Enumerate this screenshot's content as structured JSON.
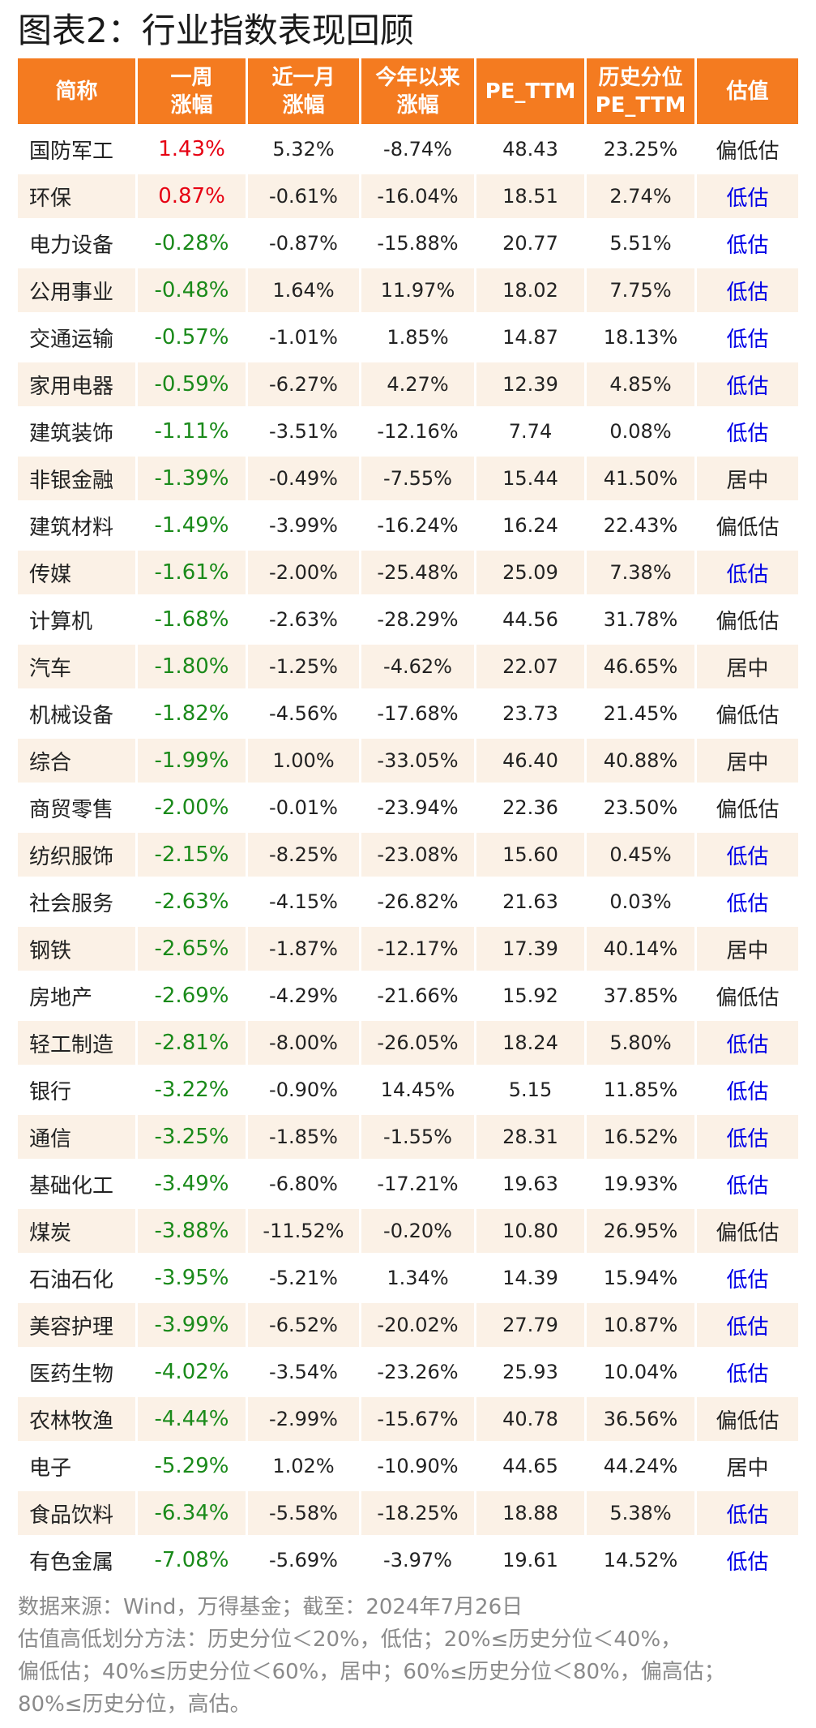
{
  "title": "图表2：行业指数表现回顾",
  "table": {
    "headers": [
      [
        "简称"
      ],
      [
        "一周",
        "涨幅"
      ],
      [
        "近一月",
        "涨幅"
      ],
      [
        "今年以来",
        "涨幅"
      ],
      [
        "PE_TTM"
      ],
      [
        "历史分位",
        "PE_TTM"
      ],
      [
        "估值"
      ]
    ],
    "rows": [
      [
        "国防军工",
        "1.43%",
        "5.32%",
        "-8.74%",
        "48.43",
        "23.25%",
        "偏低估"
      ],
      [
        "环保",
        "0.87%",
        "-0.61%",
        "-16.04%",
        "18.51",
        "2.74%",
        "低估"
      ],
      [
        "电力设备",
        "-0.28%",
        "-0.87%",
        "-15.88%",
        "20.77",
        "5.51%",
        "低估"
      ],
      [
        "公用事业",
        "-0.48%",
        "1.64%",
        "11.97%",
        "18.02",
        "7.75%",
        "低估"
      ],
      [
        "交通运输",
        "-0.57%",
        "-1.01%",
        "1.85%",
        "14.87",
        "18.13%",
        "低估"
      ],
      [
        "家用电器",
        "-0.59%",
        "-6.27%",
        "4.27%",
        "12.39",
        "4.85%",
        "低估"
      ],
      [
        "建筑装饰",
        "-1.11%",
        "-3.51%",
        "-12.16%",
        "7.74",
        "0.08%",
        "低估"
      ],
      [
        "非银金融",
        "-1.39%",
        "-0.49%",
        "-7.55%",
        "15.44",
        "41.50%",
        "居中"
      ],
      [
        "建筑材料",
        "-1.49%",
        "-3.99%",
        "-16.24%",
        "16.24",
        "22.43%",
        "偏低估"
      ],
      [
        "传媒",
        "-1.61%",
        "-2.00%",
        "-25.48%",
        "25.09",
        "7.38%",
        "低估"
      ],
      [
        "计算机",
        "-1.68%",
        "-2.63%",
        "-28.29%",
        "44.56",
        "31.78%",
        "偏低估"
      ],
      [
        "汽车",
        "-1.80%",
        "-1.25%",
        "-4.62%",
        "22.07",
        "46.65%",
        "居中"
      ],
      [
        "机械设备",
        "-1.82%",
        "-4.56%",
        "-17.68%",
        "23.73",
        "21.45%",
        "偏低估"
      ],
      [
        "综合",
        "-1.99%",
        "1.00%",
        "-33.05%",
        "46.40",
        "40.88%",
        "居中"
      ],
      [
        "商贸零售",
        "-2.00%",
        "-0.01%",
        "-23.94%",
        "22.36",
        "23.50%",
        "偏低估"
      ],
      [
        "纺织服饰",
        "-2.15%",
        "-8.25%",
        "-23.08%",
        "15.60",
        "0.45%",
        "低估"
      ],
      [
        "社会服务",
        "-2.63%",
        "-4.15%",
        "-26.82%",
        "21.63",
        "0.03%",
        "低估"
      ],
      [
        "钢铁",
        "-2.65%",
        "-1.87%",
        "-12.17%",
        "17.39",
        "40.14%",
        "居中"
      ],
      [
        "房地产",
        "-2.69%",
        "-4.29%",
        "-21.66%",
        "15.92",
        "37.85%",
        "偏低估"
      ],
      [
        "轻工制造",
        "-2.81%",
        "-8.00%",
        "-26.05%",
        "18.24",
        "5.80%",
        "低估"
      ],
      [
        "银行",
        "-3.22%",
        "-0.90%",
        "14.45%",
        "5.15",
        "11.85%",
        "低估"
      ],
      [
        "通信",
        "-3.25%",
        "-1.85%",
        "-1.55%",
        "28.31",
        "16.52%",
        "低估"
      ],
      [
        "基础化工",
        "-3.49%",
        "-6.80%",
        "-17.21%",
        "19.63",
        "19.93%",
        "低估"
      ],
      [
        "煤炭",
        "-3.88%",
        "-11.52%",
        "-0.20%",
        "10.80",
        "26.95%",
        "偏低估"
      ],
      [
        "石油石化",
        "-3.95%",
        "-5.21%",
        "1.34%",
        "14.39",
        "15.94%",
        "低估"
      ],
      [
        "美容护理",
        "-3.99%",
        "-6.52%",
        "-20.02%",
        "27.79",
        "10.87%",
        "低估"
      ],
      [
        "医药生物",
        "-4.02%",
        "-3.54%",
        "-23.26%",
        "25.93",
        "10.04%",
        "低估"
      ],
      [
        "农林牧渔",
        "-4.44%",
        "-2.99%",
        "-15.67%",
        "40.78",
        "36.56%",
        "偏低估"
      ],
      [
        "电子",
        "-5.29%",
        "1.02%",
        "-10.90%",
        "44.65",
        "44.24%",
        "居中"
      ],
      [
        "食品饮料",
        "-6.34%",
        "-5.58%",
        "-18.25%",
        "18.88",
        "5.38%",
        "低估"
      ],
      [
        "有色金属",
        "-7.08%",
        "-5.69%",
        "-3.97%",
        "19.61",
        "14.52%",
        "低估"
      ]
    ]
  },
  "notes": [
    "数据来源：Wind，万得基金；截至：2024年7月26日",
    "估值高低划分方法：历史分位＜20%，低估；20%≤历史分位＜40%，",
    "偏低估；40%≤历史分位＜60%，居中；60%≤历史分位＜80%，偏高估；",
    "80%≤历史分位，高估。"
  ],
  "colors": {
    "header_bg": "#f47b20",
    "row_alt_bg": "#fbf1e6",
    "positive": "#e60012",
    "negative": "#1a8a1a",
    "low_valuation": "#0000e6",
    "note_text": "#8a8a8a"
  }
}
